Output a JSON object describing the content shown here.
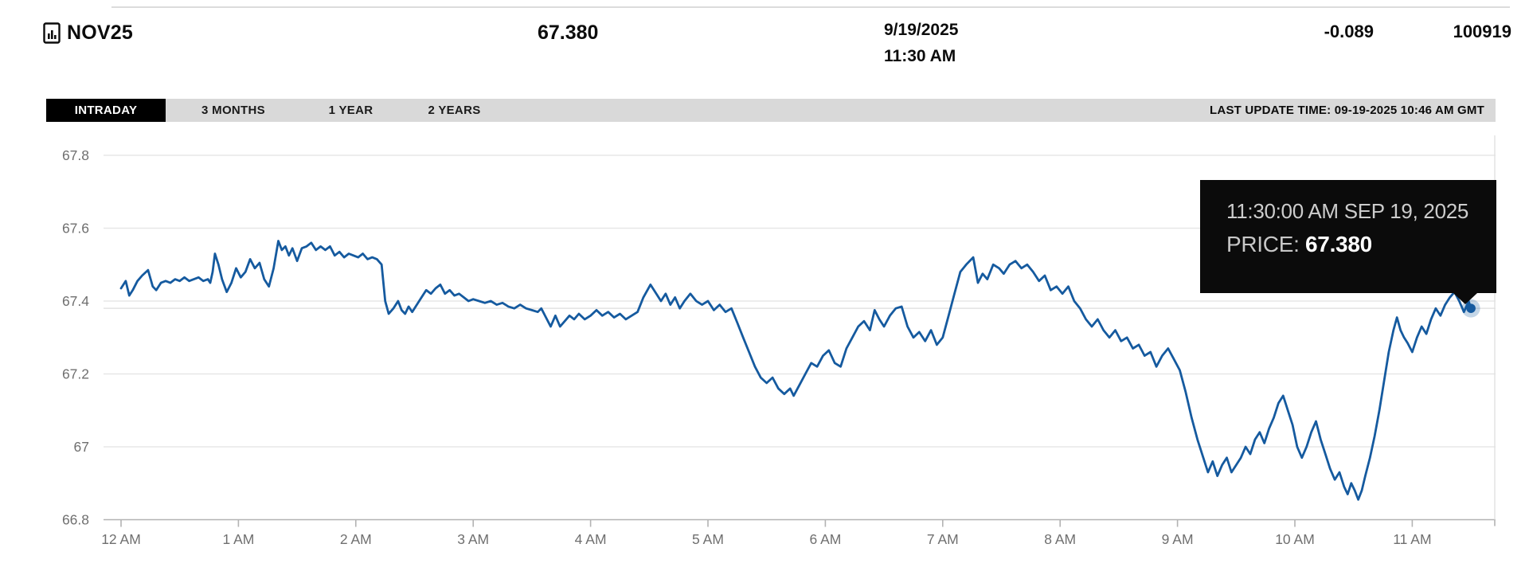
{
  "header": {
    "symbol": "NOV25",
    "price": "67.380",
    "date": "9/19/2025",
    "time": "11:30 AM",
    "change": "-0.089",
    "volume": "100919"
  },
  "tabs": {
    "items": [
      {
        "label": "INTRADAY",
        "active": true
      },
      {
        "label": "3 MONTHS",
        "active": false
      },
      {
        "label": "1 YEAR",
        "active": false
      },
      {
        "label": "2 YEARS",
        "active": false
      }
    ],
    "last_update": "LAST UPDATE TIME: 09-19-2025 10:46 AM GMT"
  },
  "tooltip": {
    "line1": "11:30:00 AM SEP 19, 2025",
    "price_label": "PRICE: ",
    "price_value": "67.380"
  },
  "chart_data": {
    "type": "line",
    "title": "",
    "xlabel": "",
    "ylabel": "",
    "ylim": [
      66.8,
      67.8
    ],
    "xlim_hours": [
      0,
      11.7
    ],
    "grid": true,
    "line_color": "#155a9f",
    "grid_color": "#e7e7e7",
    "axis_color": "#b3b3b3",
    "tick_label_color": "#6f6f6f",
    "current_price_line": 67.38,
    "y_ticks": [
      {
        "value": 67.8,
        "label": "67.8"
      },
      {
        "value": 67.6,
        "label": "67.6"
      },
      {
        "value": 67.4,
        "label": "67.4"
      },
      {
        "value": 67.2,
        "label": "67.2"
      },
      {
        "value": 67.0,
        "label": "67"
      },
      {
        "value": 66.8,
        "label": "66.8"
      }
    ],
    "x_ticks": [
      {
        "hour": 0,
        "label": "12 AM"
      },
      {
        "hour": 1,
        "label": "1 AM"
      },
      {
        "hour": 2,
        "label": "2 AM"
      },
      {
        "hour": 3,
        "label": "3 AM"
      },
      {
        "hour": 4,
        "label": "4 AM"
      },
      {
        "hour": 5,
        "label": "5 AM"
      },
      {
        "hour": 6,
        "label": "6 AM"
      },
      {
        "hour": 7,
        "label": "7 AM"
      },
      {
        "hour": 8,
        "label": "8 AM"
      },
      {
        "hour": 9,
        "label": "9 AM"
      },
      {
        "hour": 10,
        "label": "10 AM"
      },
      {
        "hour": 11,
        "label": "11 AM"
      }
    ],
    "series": [
      {
        "name": "PRICE",
        "last_point": {
          "hour": 11.5,
          "value": 67.38
        },
        "points": [
          [
            0.0,
            67.435
          ],
          [
            0.04,
            67.455
          ],
          [
            0.07,
            67.415
          ],
          [
            0.1,
            67.43
          ],
          [
            0.14,
            67.455
          ],
          [
            0.18,
            67.47
          ],
          [
            0.23,
            67.485
          ],
          [
            0.27,
            67.44
          ],
          [
            0.3,
            67.43
          ],
          [
            0.34,
            67.45
          ],
          [
            0.38,
            67.455
          ],
          [
            0.42,
            67.45
          ],
          [
            0.46,
            67.46
          ],
          [
            0.5,
            67.455
          ],
          [
            0.54,
            67.465
          ],
          [
            0.58,
            67.455
          ],
          [
            0.62,
            67.46
          ],
          [
            0.66,
            67.465
          ],
          [
            0.7,
            67.455
          ],
          [
            0.74,
            67.46
          ],
          [
            0.76,
            67.45
          ],
          [
            0.78,
            67.48
          ],
          [
            0.8,
            67.53
          ],
          [
            0.83,
            67.5
          ],
          [
            0.86,
            67.46
          ],
          [
            0.9,
            67.425
          ],
          [
            0.94,
            67.45
          ],
          [
            0.98,
            67.49
          ],
          [
            1.02,
            67.465
          ],
          [
            1.06,
            67.48
          ],
          [
            1.1,
            67.515
          ],
          [
            1.14,
            67.49
          ],
          [
            1.18,
            67.505
          ],
          [
            1.22,
            67.46
          ],
          [
            1.26,
            67.44
          ],
          [
            1.3,
            67.49
          ],
          [
            1.34,
            67.565
          ],
          [
            1.37,
            67.54
          ],
          [
            1.4,
            67.55
          ],
          [
            1.43,
            67.525
          ],
          [
            1.46,
            67.545
          ],
          [
            1.5,
            67.51
          ],
          [
            1.54,
            67.545
          ],
          [
            1.58,
            67.55
          ],
          [
            1.62,
            67.56
          ],
          [
            1.66,
            67.54
          ],
          [
            1.7,
            67.55
          ],
          [
            1.74,
            67.54
          ],
          [
            1.78,
            67.55
          ],
          [
            1.82,
            67.525
          ],
          [
            1.86,
            67.535
          ],
          [
            1.9,
            67.52
          ],
          [
            1.94,
            67.53
          ],
          [
            1.98,
            67.525
          ],
          [
            2.02,
            67.52
          ],
          [
            2.06,
            67.53
          ],
          [
            2.1,
            67.515
          ],
          [
            2.14,
            67.52
          ],
          [
            2.18,
            67.515
          ],
          [
            2.22,
            67.5
          ],
          [
            2.25,
            67.4
          ],
          [
            2.28,
            67.365
          ],
          [
            2.32,
            67.38
          ],
          [
            2.36,
            67.4
          ],
          [
            2.39,
            67.375
          ],
          [
            2.42,
            67.365
          ],
          [
            2.45,
            67.385
          ],
          [
            2.48,
            67.37
          ],
          [
            2.52,
            67.39
          ],
          [
            2.56,
            67.41
          ],
          [
            2.6,
            67.43
          ],
          [
            2.64,
            67.42
          ],
          [
            2.68,
            67.435
          ],
          [
            2.72,
            67.445
          ],
          [
            2.76,
            67.42
          ],
          [
            2.8,
            67.43
          ],
          [
            2.84,
            67.415
          ],
          [
            2.88,
            67.42
          ],
          [
            2.92,
            67.41
          ],
          [
            2.96,
            67.4
          ],
          [
            3.0,
            67.405
          ],
          [
            3.05,
            67.4
          ],
          [
            3.1,
            67.395
          ],
          [
            3.15,
            67.4
          ],
          [
            3.2,
            67.39
          ],
          [
            3.25,
            67.395
          ],
          [
            3.3,
            67.385
          ],
          [
            3.35,
            67.38
          ],
          [
            3.4,
            67.39
          ],
          [
            3.45,
            67.38
          ],
          [
            3.5,
            67.375
          ],
          [
            3.55,
            67.37
          ],
          [
            3.58,
            67.38
          ],
          [
            3.62,
            67.355
          ],
          [
            3.66,
            67.33
          ],
          [
            3.7,
            67.36
          ],
          [
            3.74,
            67.33
          ],
          [
            3.78,
            67.345
          ],
          [
            3.82,
            67.36
          ],
          [
            3.86,
            67.35
          ],
          [
            3.9,
            67.365
          ],
          [
            3.95,
            67.35
          ],
          [
            4.0,
            67.36
          ],
          [
            4.05,
            67.375
          ],
          [
            4.1,
            67.36
          ],
          [
            4.15,
            67.37
          ],
          [
            4.2,
            67.355
          ],
          [
            4.25,
            67.365
          ],
          [
            4.3,
            67.35
          ],
          [
            4.35,
            67.36
          ],
          [
            4.4,
            67.37
          ],
          [
            4.45,
            67.41
          ],
          [
            4.51,
            67.445
          ],
          [
            4.56,
            67.42
          ],
          [
            4.6,
            67.4
          ],
          [
            4.64,
            67.42
          ],
          [
            4.68,
            67.39
          ],
          [
            4.72,
            67.41
          ],
          [
            4.76,
            67.38
          ],
          [
            4.8,
            67.4
          ],
          [
            4.85,
            67.42
          ],
          [
            4.9,
            67.4
          ],
          [
            4.95,
            67.39
          ],
          [
            5.0,
            67.4
          ],
          [
            5.05,
            67.375
          ],
          [
            5.1,
            67.39
          ],
          [
            5.15,
            67.37
          ],
          [
            5.2,
            67.38
          ],
          [
            5.25,
            67.34
          ],
          [
            5.3,
            67.3
          ],
          [
            5.35,
            67.26
          ],
          [
            5.4,
            67.22
          ],
          [
            5.45,
            67.19
          ],
          [
            5.5,
            67.175
          ],
          [
            5.55,
            67.19
          ],
          [
            5.6,
            67.16
          ],
          [
            5.65,
            67.145
          ],
          [
            5.7,
            67.16
          ],
          [
            5.73,
            67.14
          ],
          [
            5.78,
            67.17
          ],
          [
            5.83,
            67.2
          ],
          [
            5.88,
            67.23
          ],
          [
            5.93,
            67.22
          ],
          [
            5.98,
            67.25
          ],
          [
            6.03,
            67.265
          ],
          [
            6.08,
            67.23
          ],
          [
            6.13,
            67.22
          ],
          [
            6.18,
            67.27
          ],
          [
            6.23,
            67.3
          ],
          [
            6.28,
            67.33
          ],
          [
            6.33,
            67.345
          ],
          [
            6.38,
            67.32
          ],
          [
            6.42,
            67.375
          ],
          [
            6.46,
            67.35
          ],
          [
            6.5,
            67.33
          ],
          [
            6.55,
            67.36
          ],
          [
            6.6,
            67.38
          ],
          [
            6.65,
            67.385
          ],
          [
            6.7,
            67.33
          ],
          [
            6.75,
            67.3
          ],
          [
            6.8,
            67.315
          ],
          [
            6.85,
            67.29
          ],
          [
            6.9,
            67.32
          ],
          [
            6.95,
            67.28
          ],
          [
            7.0,
            67.3
          ],
          [
            7.05,
            67.36
          ],
          [
            7.1,
            67.42
          ],
          [
            7.15,
            67.48
          ],
          [
            7.2,
            67.5
          ],
          [
            7.26,
            67.52
          ],
          [
            7.3,
            67.45
          ],
          [
            7.34,
            67.475
          ],
          [
            7.38,
            67.46
          ],
          [
            7.43,
            67.5
          ],
          [
            7.48,
            67.49
          ],
          [
            7.52,
            67.475
          ],
          [
            7.57,
            67.5
          ],
          [
            7.62,
            67.51
          ],
          [
            7.67,
            67.49
          ],
          [
            7.72,
            67.5
          ],
          [
            7.77,
            67.48
          ],
          [
            7.82,
            67.455
          ],
          [
            7.87,
            67.47
          ],
          [
            7.92,
            67.43
          ],
          [
            7.97,
            67.44
          ],
          [
            8.02,
            67.42
          ],
          [
            8.07,
            67.44
          ],
          [
            8.12,
            67.4
          ],
          [
            8.17,
            67.38
          ],
          [
            8.22,
            67.35
          ],
          [
            8.27,
            67.33
          ],
          [
            8.32,
            67.35
          ],
          [
            8.37,
            67.32
          ],
          [
            8.42,
            67.3
          ],
          [
            8.47,
            67.32
          ],
          [
            8.52,
            67.29
          ],
          [
            8.57,
            67.3
          ],
          [
            8.62,
            67.27
          ],
          [
            8.67,
            67.28
          ],
          [
            8.72,
            67.25
          ],
          [
            8.77,
            67.26
          ],
          [
            8.82,
            67.22
          ],
          [
            8.87,
            67.25
          ],
          [
            8.92,
            67.27
          ],
          [
            8.97,
            67.24
          ],
          [
            9.02,
            67.21
          ],
          [
            9.07,
            67.15
          ],
          [
            9.12,
            67.08
          ],
          [
            9.17,
            67.02
          ],
          [
            9.22,
            66.97
          ],
          [
            9.26,
            66.93
          ],
          [
            9.3,
            66.96
          ],
          [
            9.34,
            66.92
          ],
          [
            9.38,
            66.95
          ],
          [
            9.42,
            66.97
          ],
          [
            9.46,
            66.93
          ],
          [
            9.5,
            66.95
          ],
          [
            9.54,
            66.97
          ],
          [
            9.58,
            67.0
          ],
          [
            9.62,
            66.98
          ],
          [
            9.66,
            67.02
          ],
          [
            9.7,
            67.04
          ],
          [
            9.74,
            67.01
          ],
          [
            9.78,
            67.05
          ],
          [
            9.82,
            67.08
          ],
          [
            9.86,
            67.12
          ],
          [
            9.9,
            67.14
          ],
          [
            9.94,
            67.1
          ],
          [
            9.98,
            67.06
          ],
          [
            10.02,
            67.0
          ],
          [
            10.06,
            66.97
          ],
          [
            10.1,
            67.0
          ],
          [
            10.14,
            67.04
          ],
          [
            10.18,
            67.07
          ],
          [
            10.22,
            67.02
          ],
          [
            10.26,
            66.98
          ],
          [
            10.3,
            66.94
          ],
          [
            10.34,
            66.91
          ],
          [
            10.38,
            66.93
          ],
          [
            10.42,
            66.89
          ],
          [
            10.45,
            66.87
          ],
          [
            10.48,
            66.9
          ],
          [
            10.51,
            66.88
          ],
          [
            10.54,
            66.855
          ],
          [
            10.57,
            66.88
          ],
          [
            10.6,
            66.92
          ],
          [
            10.64,
            66.97
          ],
          [
            10.68,
            67.03
          ],
          [
            10.72,
            67.1
          ],
          [
            10.76,
            67.18
          ],
          [
            10.8,
            67.26
          ],
          [
            10.84,
            67.32
          ],
          [
            10.87,
            67.355
          ],
          [
            10.9,
            67.32
          ],
          [
            10.93,
            67.3
          ],
          [
            10.96,
            67.285
          ],
          [
            11.0,
            67.26
          ],
          [
            11.04,
            67.3
          ],
          [
            11.08,
            67.33
          ],
          [
            11.12,
            67.31
          ],
          [
            11.16,
            67.35
          ],
          [
            11.2,
            67.38
          ],
          [
            11.24,
            67.36
          ],
          [
            11.28,
            67.39
          ],
          [
            11.32,
            67.41
          ],
          [
            11.36,
            67.425
          ],
          [
            11.4,
            67.4
          ],
          [
            11.44,
            67.37
          ],
          [
            11.48,
            67.4
          ],
          [
            11.5,
            67.38
          ]
        ]
      }
    ]
  }
}
